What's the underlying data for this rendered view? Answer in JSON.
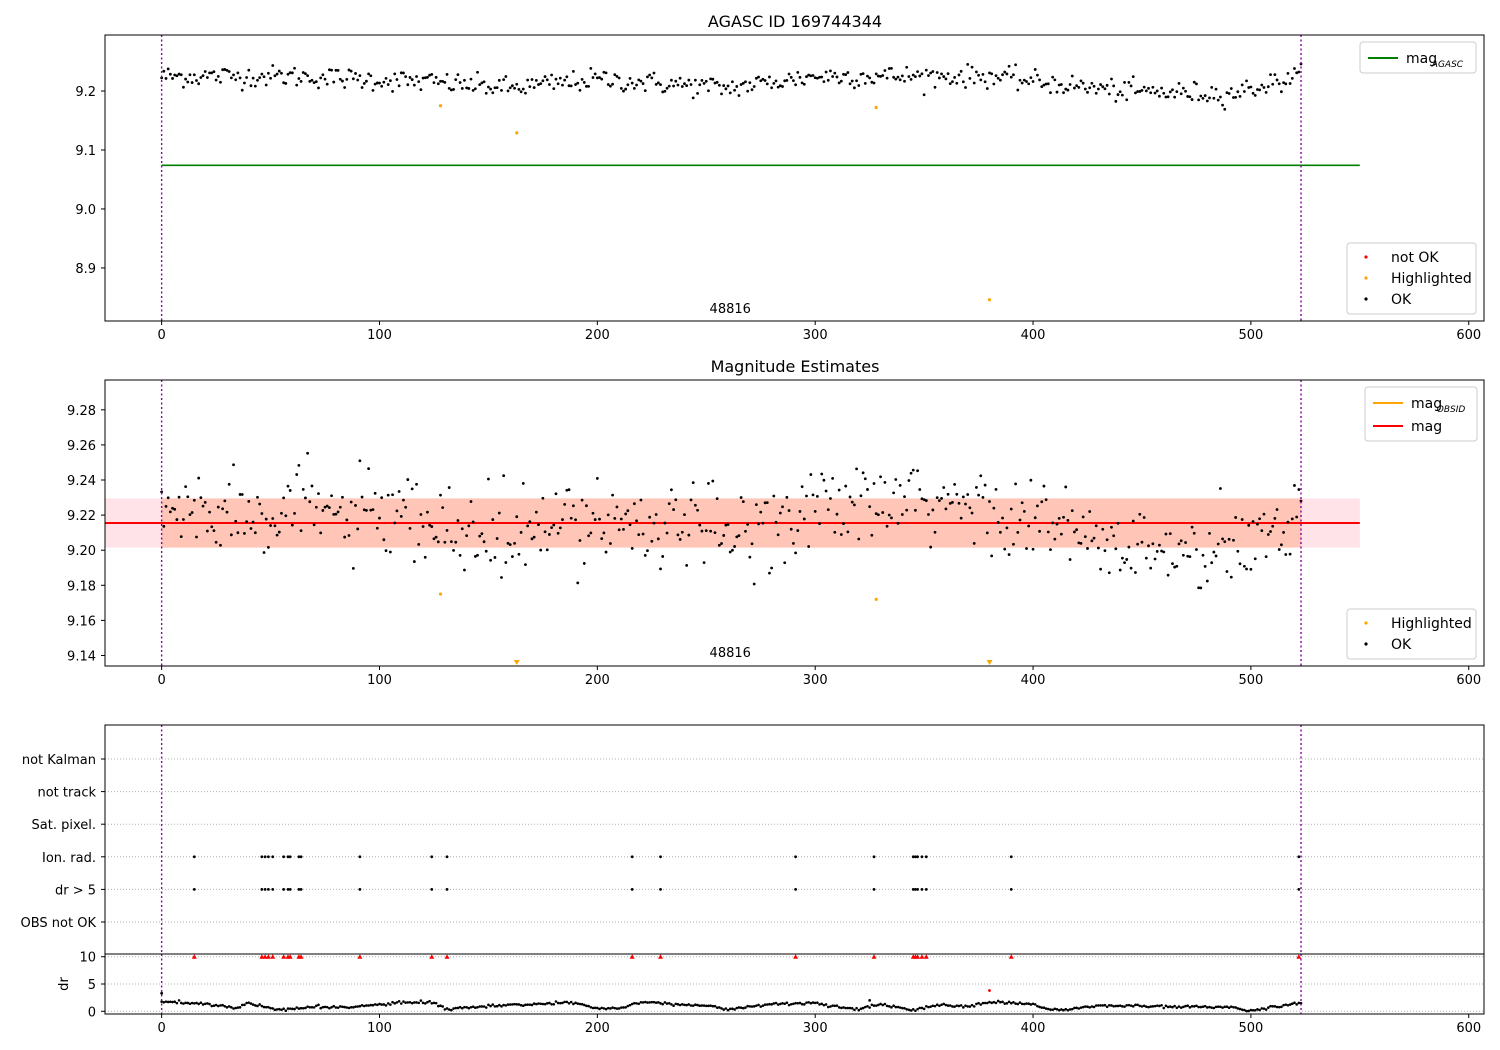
{
  "chart_data": [
    {
      "type": "scatter",
      "title": "AGASC ID 169744344",
      "xlim": [
        -26,
        607
      ],
      "ylim": [
        8.81,
        9.295
      ],
      "xticks": [
        0,
        100,
        200,
        300,
        400,
        500,
        600
      ],
      "yticks": [
        8.9,
        9.0,
        9.1,
        9.2
      ],
      "annotation": {
        "text": "48816",
        "x": 261,
        "y": 8.82
      },
      "vlines": [
        0,
        523
      ],
      "hlines": [
        {
          "name": "mag_AGASC",
          "y": 9.074,
          "x0": 0,
          "x1": 550,
          "color": "#008000"
        }
      ],
      "legend_lines": [
        {
          "main": "mag",
          "sub": "AGASC",
          "color": "#008000"
        }
      ],
      "legend_points": [
        {
          "label": "not OK",
          "color": "#ff0000"
        },
        {
          "label": "Highlighted",
          "color": "#ffa500"
        },
        {
          "label": "OK",
          "color": "#000000"
        }
      ],
      "series": [
        {
          "name": "OK",
          "color": "#000000",
          "mean": 9.22,
          "amp": 0.015,
          "trend": [
            [
              0,
              9.225
            ],
            [
              60,
              9.225
            ],
            [
              125,
              9.215
            ],
            [
              160,
              9.205
            ],
            [
              200,
              9.22
            ],
            [
              260,
              9.205
            ],
            [
              300,
              9.225
            ],
            [
              380,
              9.225
            ],
            [
              440,
              9.2
            ],
            [
              490,
              9.195
            ],
            [
              523,
              9.225
            ]
          ],
          "x_range": [
            0,
            523
          ]
        },
        {
          "name": "Highlighted",
          "color": "#ffa500",
          "points": [
            [
              128,
              9.175
            ],
            [
              163,
              9.129
            ],
            [
              328,
              9.172
            ],
            [
              380,
              8.846
            ]
          ]
        }
      ]
    },
    {
      "type": "scatter",
      "title": "Magnitude Estimates",
      "xlim": [
        -26,
        607
      ],
      "ylim": [
        9.134,
        9.297
      ],
      "xticks": [
        0,
        100,
        200,
        300,
        400,
        500,
        600
      ],
      "yticks": [
        9.14,
        9.16,
        9.18,
        9.2,
        9.22,
        9.24,
        9.26,
        9.28
      ],
      "annotation": {
        "text": "48816",
        "x": 261,
        "y": 9.138
      },
      "vlines": [
        0,
        523
      ],
      "bands": [
        {
          "y0": 9.2015,
          "y1": 9.2295,
          "x0": -26,
          "x1": 550,
          "color": "#ffc0cb"
        },
        {
          "y0": 9.2015,
          "y1": 9.2295,
          "x0": 0,
          "x1": 523,
          "color": "#ffa07a"
        }
      ],
      "hlines": [
        {
          "name": "mag_OBSID",
          "y": 9.2155,
          "x0": 0,
          "x1": 523,
          "color": "#ffa500"
        },
        {
          "name": "mag",
          "y": 9.2155,
          "x0": -26,
          "x1": 550,
          "color": "#ff0000"
        }
      ],
      "legend_lines": [
        {
          "main": "mag",
          "sub": "OBSID",
          "color": "#ffa500"
        },
        {
          "main": "mag",
          "sub": "",
          "color": "#ff0000"
        }
      ],
      "legend_points": [
        {
          "label": "Highlighted",
          "color": "#ffa500"
        },
        {
          "label": "OK",
          "color": "#000000"
        }
      ],
      "series": [
        {
          "name": "OK",
          "color": "#000000",
          "amp": 0.012,
          "trend": [
            [
              0,
              9.222
            ],
            [
              60,
              9.225
            ],
            [
              125,
              9.212
            ],
            [
              160,
              9.205
            ],
            [
              200,
              9.22
            ],
            [
              260,
              9.208
            ],
            [
              300,
              9.225
            ],
            [
              380,
              9.225
            ],
            [
              440,
              9.2
            ],
            [
              490,
              9.195
            ],
            [
              523,
              9.225
            ]
          ],
          "x_range": [
            0,
            523
          ]
        },
        {
          "name": "Highlighted",
          "color": "#ffa500",
          "points": [
            [
              128,
              9.175
            ],
            [
              328,
              9.172
            ]
          ],
          "markers_below": [
            163,
            380
          ]
        }
      ]
    },
    {
      "type": "scatter",
      "title": "",
      "xlim": [
        -26,
        607
      ],
      "categories": [
        "not Kalman",
        "not track",
        "Sat. pixel.",
        "Ion. rad.",
        "dr > 5",
        "OBS not OK"
      ],
      "flag_x": [
        15,
        46,
        47.5,
        49,
        51,
        56,
        58,
        59,
        63,
        64,
        91,
        124,
        131,
        216,
        229,
        291,
        327,
        345,
        346,
        347,
        349,
        351,
        390,
        522
      ],
      "dr": {
        "ylabel": "dr",
        "ylim": [
          -0.5,
          10.5
        ],
        "yticks": [
          0,
          5,
          10
        ],
        "xticks": [
          0,
          100,
          200,
          300,
          400,
          500,
          600
        ],
        "trend": [
          [
            0,
            1.7
          ],
          [
            20,
            1.4
          ],
          [
            35,
            0.6
          ],
          [
            40,
            1.5
          ],
          [
            55,
            0.2
          ],
          [
            70,
            0.8
          ],
          [
            90,
            0.8
          ],
          [
            110,
            1.6
          ],
          [
            125,
            1.6
          ],
          [
            130,
            0.4
          ],
          [
            150,
            0.9
          ],
          [
            190,
            1.6
          ],
          [
            200,
            0.5
          ],
          [
            210,
            0.6
          ],
          [
            220,
            1.7
          ],
          [
            250,
            1.0
          ],
          [
            260,
            0.4
          ],
          [
            280,
            1.3
          ],
          [
            300,
            1.5
          ],
          [
            310,
            0.9
          ],
          [
            320,
            0.3
          ],
          [
            330,
            1.3
          ],
          [
            345,
            0.2
          ],
          [
            355,
            1.1
          ],
          [
            370,
            0.9
          ],
          [
            380,
            1.7
          ],
          [
            400,
            1.3
          ],
          [
            410,
            0.1
          ],
          [
            430,
            1.0
          ],
          [
            460,
            0.9
          ],
          [
            490,
            0.8
          ],
          [
            500,
            0.1
          ],
          [
            523,
            1.5
          ]
        ],
        "outliers": [
          [
            0,
            3.3
          ],
          [
            325,
            2.0
          ],
          [
            380,
            3.8
          ]
        ],
        "flag_dr": 10
      }
    }
  ]
}
